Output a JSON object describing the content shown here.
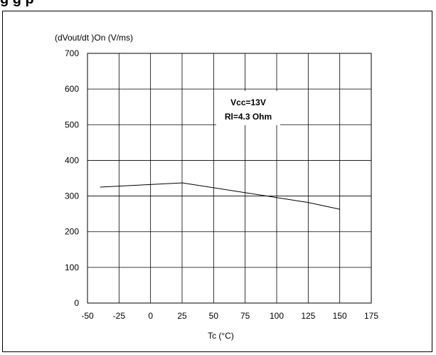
{
  "page": {
    "title_fragment": "g                                         g   p"
  },
  "chart_data": {
    "type": "line",
    "title": "",
    "xlabel": "Tc (°C)",
    "ylabel": "(dVout/dt )On (V/ms)",
    "xlim": [
      -50,
      175
    ],
    "ylim": [
      0,
      700
    ],
    "x_ticks": [
      -50,
      -25,
      0,
      25,
      50,
      75,
      100,
      125,
      150,
      175
    ],
    "y_ticks": [
      0,
      100,
      200,
      300,
      400,
      500,
      600,
      700
    ],
    "grid": true,
    "annotation": [
      "Vcc=13V",
      "Rl=4.3 Ohm"
    ],
    "series": [
      {
        "x": [
          -40,
          25,
          125,
          150
        ],
        "y": [
          325,
          337,
          282,
          263
        ]
      }
    ]
  }
}
